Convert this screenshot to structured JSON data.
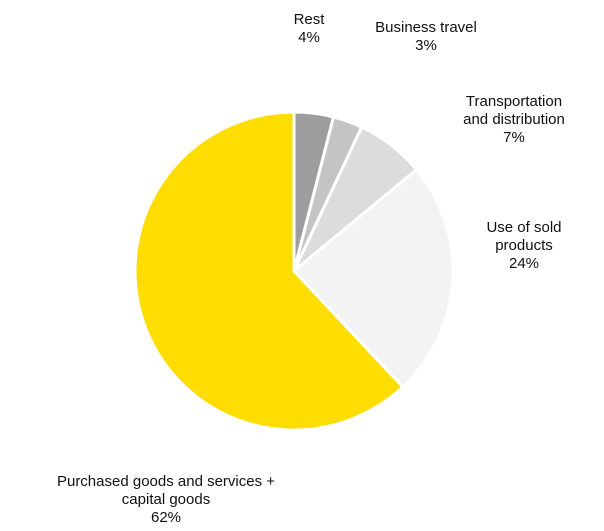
{
  "chart_data": {
    "type": "pie",
    "start_angle_deg": 0,
    "direction": "clockwise",
    "slice_border_color": "#ffffff",
    "slices": [
      {
        "label": [
          "Rest"
        ],
        "value": 4,
        "value_label": "4%",
        "color": "#9d9d9d"
      },
      {
        "label": [
          "Business travel"
        ],
        "value": 3,
        "value_label": "3%",
        "color": "#c4c4c4"
      },
      {
        "label": [
          "Transportation",
          "and distribution"
        ],
        "value": 7,
        "value_label": "7%",
        "color": "#dcdcdc"
      },
      {
        "label": [
          "Use of sold",
          "products"
        ],
        "value": 24,
        "value_label": "24%",
        "color": "#f3f3f3"
      },
      {
        "label": [
          "Purchased goods and services +",
          "capital goods"
        ],
        "value": 62,
        "value_label": "62%",
        "color": "#ffdd00"
      }
    ]
  }
}
